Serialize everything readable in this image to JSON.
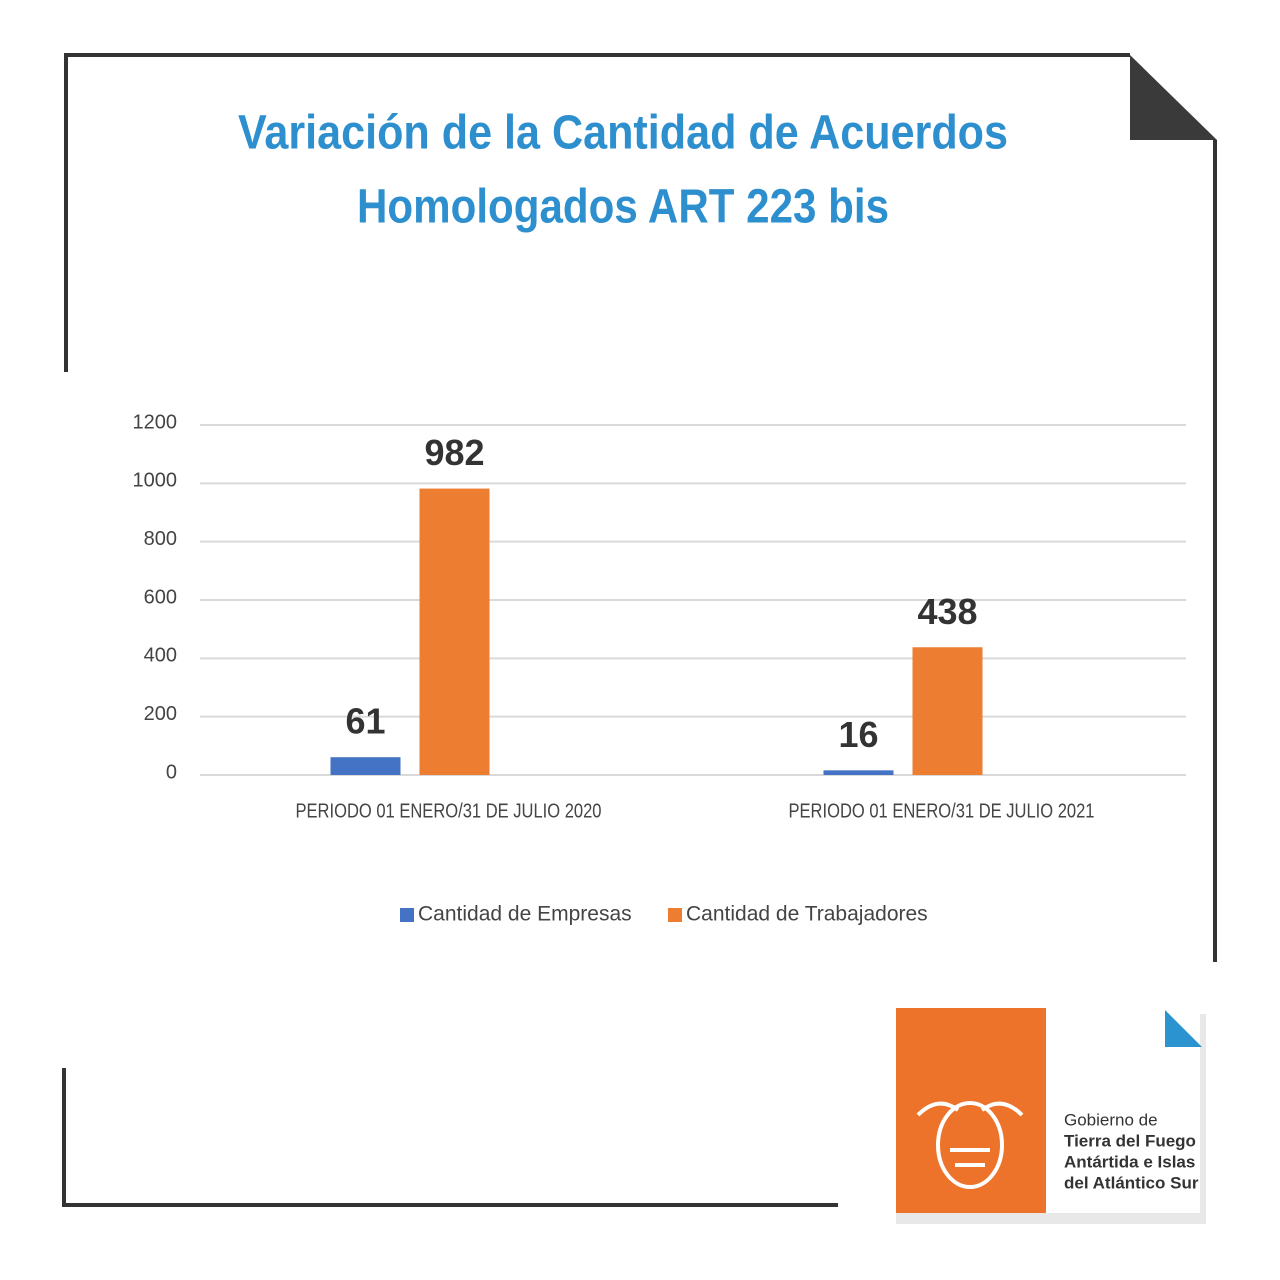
{
  "chart_data": {
    "type": "bar",
    "title": "Variación de la Cantidad de Acuerdos",
    "subtitle": "Homologados ART 223 bis",
    "categories": [
      "PERIODO 01 ENERO/31 DE JULIO 2020",
      "PERIODO 01 ENERO/31 DE JULIO 2021"
    ],
    "series": [
      {
        "name": "Cantidad de Empresas",
        "color": "#4472c4",
        "values": [
          61,
          16
        ]
      },
      {
        "name": "Cantidad de Trabajadores",
        "color": "#ed7d31",
        "values": [
          982,
          438
        ]
      }
    ],
    "ylim": [
      0,
      1200
    ],
    "yticks": [
      0,
      200,
      400,
      600,
      800,
      1000,
      1200
    ],
    "grid": true,
    "legend": "bottom",
    "data_labels": true
  },
  "branding": {
    "lines": [
      "Gobierno de",
      "Tierra del Fuego",
      "Antártida e Islas",
      "del Atlántico Sur"
    ]
  }
}
